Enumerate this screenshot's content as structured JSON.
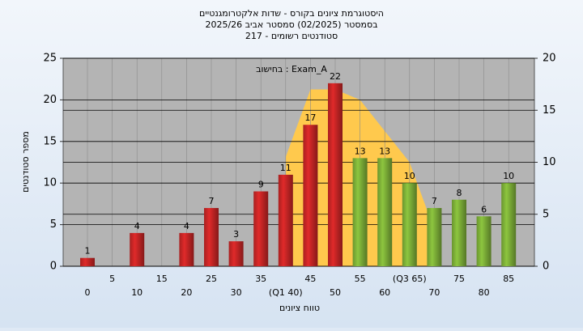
{
  "chart_data": {
    "type": "bar",
    "title": "היסטוגרמת ציונים בקורס - שדות אלקטרומגנטיים",
    "subtitle": "בסמסטר  (02/2025)  סמסטר אביב 2025/26",
    "subtitle2": "סטודנטים רשומים - 217",
    "annotation": "בחישוב : Exam_A",
    "xlabel": "טווח ציונים",
    "ylabel": "מספר סטודנטים",
    "categories": [
      "0",
      "5",
      "10",
      "15",
      "20",
      "25",
      "30",
      "35",
      "(Q1 40)",
      "45",
      "50",
      "55",
      "60",
      "(Q3 65)",
      "70",
      "75",
      "80",
      "85"
    ],
    "values": [
      1,
      0,
      4,
      0,
      4,
      7,
      3,
      9,
      11,
      17,
      22,
      13,
      13,
      10,
      7,
      8,
      6,
      10
    ],
    "bar_colors": [
      "#e02a2a",
      "#e02a2a",
      "#e02a2a",
      "#e02a2a",
      "#e02a2a",
      "#e02a2a",
      "#e02a2a",
      "#e02a2a",
      "#e02a2a",
      "#e02a2a",
      "#e02a2a",
      "#8dc63f",
      "#8dc63f",
      "#8dc63f",
      "#8dc63f",
      "#8dc63f",
      "#8dc63f",
      "#8dc63f"
    ],
    "area": {
      "axis": "y2",
      "color": "#ffc94d",
      "values": [
        null,
        null,
        null,
        null,
        null,
        null,
        null,
        null,
        10.5,
        17,
        17,
        16,
        13,
        10,
        3.5,
        null,
        null,
        null
      ]
    },
    "ylim": [
      0,
      25
    ],
    "yticks": [
      0,
      5,
      10,
      15,
      20,
      25
    ],
    "y2lim": [
      0,
      20
    ],
    "y2ticks": [
      0,
      5,
      10,
      15,
      20
    ],
    "grid": true
  }
}
